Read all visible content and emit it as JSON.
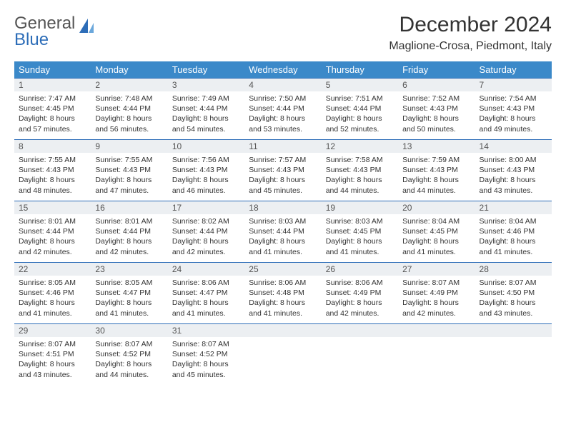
{
  "brand": {
    "name1": "General",
    "name2": "Blue"
  },
  "title": "December 2024",
  "location": "Maglione-Crosa, Piedmont, Italy",
  "colors": {
    "header_bg": "#3b89c9",
    "header_text": "#ffffff",
    "daynum_bg": "#eceff2",
    "row_border": "#2d6db8",
    "brand_gray": "#555555",
    "brand_blue": "#2d6db8"
  },
  "weekdays": [
    "Sunday",
    "Monday",
    "Tuesday",
    "Wednesday",
    "Thursday",
    "Friday",
    "Saturday"
  ],
  "weeks": [
    [
      {
        "n": "1",
        "sr": "7:47 AM",
        "ss": "4:45 PM",
        "dl": "8 hours and 57 minutes."
      },
      {
        "n": "2",
        "sr": "7:48 AM",
        "ss": "4:44 PM",
        "dl": "8 hours and 56 minutes."
      },
      {
        "n": "3",
        "sr": "7:49 AM",
        "ss": "4:44 PM",
        "dl": "8 hours and 54 minutes."
      },
      {
        "n": "4",
        "sr": "7:50 AM",
        "ss": "4:44 PM",
        "dl": "8 hours and 53 minutes."
      },
      {
        "n": "5",
        "sr": "7:51 AM",
        "ss": "4:44 PM",
        "dl": "8 hours and 52 minutes."
      },
      {
        "n": "6",
        "sr": "7:52 AM",
        "ss": "4:43 PM",
        "dl": "8 hours and 50 minutes."
      },
      {
        "n": "7",
        "sr": "7:54 AM",
        "ss": "4:43 PM",
        "dl": "8 hours and 49 minutes."
      }
    ],
    [
      {
        "n": "8",
        "sr": "7:55 AM",
        "ss": "4:43 PM",
        "dl": "8 hours and 48 minutes."
      },
      {
        "n": "9",
        "sr": "7:55 AM",
        "ss": "4:43 PM",
        "dl": "8 hours and 47 minutes."
      },
      {
        "n": "10",
        "sr": "7:56 AM",
        "ss": "4:43 PM",
        "dl": "8 hours and 46 minutes."
      },
      {
        "n": "11",
        "sr": "7:57 AM",
        "ss": "4:43 PM",
        "dl": "8 hours and 45 minutes."
      },
      {
        "n": "12",
        "sr": "7:58 AM",
        "ss": "4:43 PM",
        "dl": "8 hours and 44 minutes."
      },
      {
        "n": "13",
        "sr": "7:59 AM",
        "ss": "4:43 PM",
        "dl": "8 hours and 44 minutes."
      },
      {
        "n": "14",
        "sr": "8:00 AM",
        "ss": "4:43 PM",
        "dl": "8 hours and 43 minutes."
      }
    ],
    [
      {
        "n": "15",
        "sr": "8:01 AM",
        "ss": "4:44 PM",
        "dl": "8 hours and 42 minutes."
      },
      {
        "n": "16",
        "sr": "8:01 AM",
        "ss": "4:44 PM",
        "dl": "8 hours and 42 minutes."
      },
      {
        "n": "17",
        "sr": "8:02 AM",
        "ss": "4:44 PM",
        "dl": "8 hours and 42 minutes."
      },
      {
        "n": "18",
        "sr": "8:03 AM",
        "ss": "4:44 PM",
        "dl": "8 hours and 41 minutes."
      },
      {
        "n": "19",
        "sr": "8:03 AM",
        "ss": "4:45 PM",
        "dl": "8 hours and 41 minutes."
      },
      {
        "n": "20",
        "sr": "8:04 AM",
        "ss": "4:45 PM",
        "dl": "8 hours and 41 minutes."
      },
      {
        "n": "21",
        "sr": "8:04 AM",
        "ss": "4:46 PM",
        "dl": "8 hours and 41 minutes."
      }
    ],
    [
      {
        "n": "22",
        "sr": "8:05 AM",
        "ss": "4:46 PM",
        "dl": "8 hours and 41 minutes."
      },
      {
        "n": "23",
        "sr": "8:05 AM",
        "ss": "4:47 PM",
        "dl": "8 hours and 41 minutes."
      },
      {
        "n": "24",
        "sr": "8:06 AM",
        "ss": "4:47 PM",
        "dl": "8 hours and 41 minutes."
      },
      {
        "n": "25",
        "sr": "8:06 AM",
        "ss": "4:48 PM",
        "dl": "8 hours and 41 minutes."
      },
      {
        "n": "26",
        "sr": "8:06 AM",
        "ss": "4:49 PM",
        "dl": "8 hours and 42 minutes."
      },
      {
        "n": "27",
        "sr": "8:07 AM",
        "ss": "4:49 PM",
        "dl": "8 hours and 42 minutes."
      },
      {
        "n": "28",
        "sr": "8:07 AM",
        "ss": "4:50 PM",
        "dl": "8 hours and 43 minutes."
      }
    ],
    [
      {
        "n": "29",
        "sr": "8:07 AM",
        "ss": "4:51 PM",
        "dl": "8 hours and 43 minutes."
      },
      {
        "n": "30",
        "sr": "8:07 AM",
        "ss": "4:52 PM",
        "dl": "8 hours and 44 minutes."
      },
      {
        "n": "31",
        "sr": "8:07 AM",
        "ss": "4:52 PM",
        "dl": "8 hours and 45 minutes."
      },
      null,
      null,
      null,
      null
    ]
  ],
  "labels": {
    "sunrise": "Sunrise:",
    "sunset": "Sunset:",
    "daylight": "Daylight:"
  }
}
